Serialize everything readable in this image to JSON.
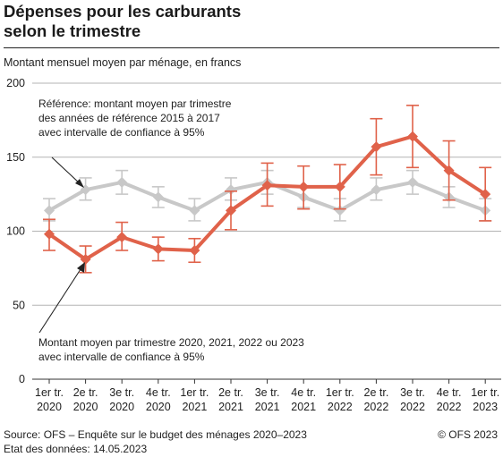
{
  "title_line1": "Dépenses pour les carburants",
  "title_line2": "selon le trimestre",
  "subtitle": "Montant mensuel moyen par ménage, en francs",
  "annotation_reference": [
    "Référence: montant moyen par trimestre",
    "des années de référence 2015 à 2017",
    "avec intervalle de confiance à 95%"
  ],
  "annotation_current": [
    "Montant moyen par trimestre 2020, 2021, 2022 ou 2023",
    "avec intervalle de confiance à 95%"
  ],
  "source": "Source: OFS – Enquête sur le budget des ménages 2020–2023",
  "data_status": "Etat des données: 14.05.2023",
  "copyright": "© OFS 2023",
  "colors": {
    "reference": "#c8c8c8",
    "current": "#e0624a",
    "grid": "#b3b3b3"
  },
  "chart_data": {
    "type": "line",
    "title": "Dépenses pour les carburants selon le trimestre",
    "ylabel": "Montant mensuel moyen par ménage, en francs",
    "ylim": [
      0,
      200
    ],
    "yticks": [
      0,
      50,
      100,
      150,
      200
    ],
    "grid": true,
    "categories": [
      [
        "1er tr.",
        "2020"
      ],
      [
        "2e tr.",
        "2020"
      ],
      [
        "3e tr.",
        "2020"
      ],
      [
        "4e tr.",
        "2020"
      ],
      [
        "1er tr.",
        "2021"
      ],
      [
        "2e tr.",
        "2021"
      ],
      [
        "3e tr.",
        "2021"
      ],
      [
        "4e tr.",
        "2021"
      ],
      [
        "1er tr.",
        "2022"
      ],
      [
        "2e tr.",
        "2022"
      ],
      [
        "3e tr.",
        "2022"
      ],
      [
        "4e tr.",
        "2022"
      ],
      [
        "1er tr.",
        "2023"
      ]
    ],
    "series": [
      {
        "key": "reference",
        "values": [
          114,
          128,
          133,
          123,
          114,
          128,
          133,
          123,
          114,
          128,
          133,
          123,
          114
        ],
        "ci_low": [
          107,
          121,
          125,
          116,
          107,
          121,
          125,
          116,
          107,
          121,
          125,
          116,
          107
        ],
        "ci_high": [
          122,
          136,
          141,
          130,
          122,
          136,
          141,
          130,
          122,
          136,
          141,
          130,
          122
        ]
      },
      {
        "key": "current",
        "values": [
          98,
          81,
          96,
          88,
          87,
          114,
          131,
          130,
          130,
          157,
          164,
          141,
          125
        ],
        "ci_low": [
          87,
          72,
          87,
          80,
          79,
          101,
          117,
          115,
          115,
          138,
          143,
          121,
          107
        ],
        "ci_high": [
          108,
          90,
          106,
          96,
          95,
          127,
          146,
          144,
          145,
          176,
          185,
          161,
          143
        ]
      }
    ]
  }
}
